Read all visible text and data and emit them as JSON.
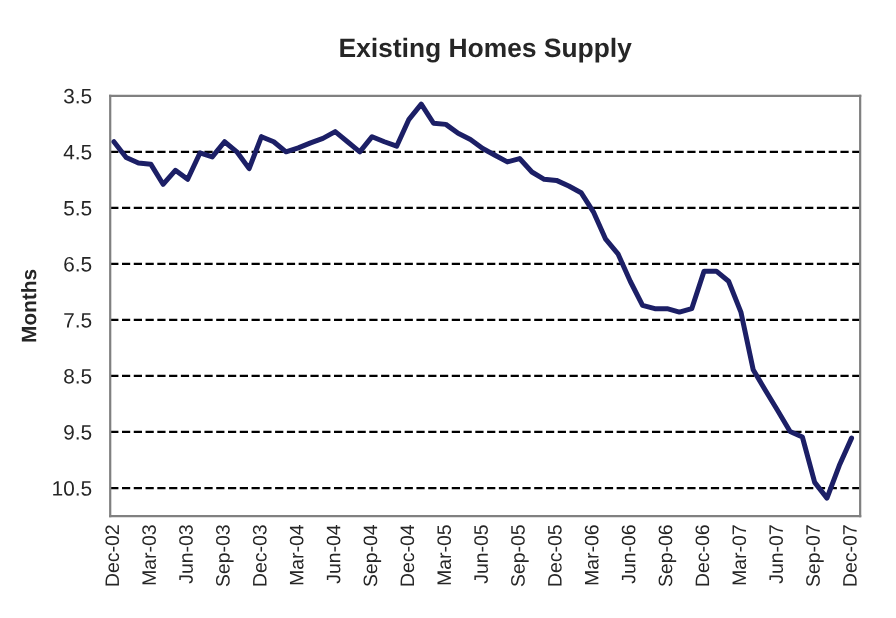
{
  "chart_data": {
    "type": "line",
    "title": "Existing Homes Supply",
    "ylabel": "Months",
    "categories": [
      "Dec-02",
      null,
      null,
      "Mar-03",
      null,
      null,
      "Jun-03",
      null,
      null,
      "Sep-03",
      null,
      null,
      "Dec-03",
      null,
      null,
      "Mar-04",
      null,
      null,
      "Jun-04",
      null,
      null,
      "Sep-04",
      null,
      null,
      "Dec-04",
      null,
      null,
      "Mar-05",
      null,
      null,
      "Jun-05",
      null,
      null,
      "Sep-05",
      null,
      null,
      "Dec-05",
      null,
      null,
      "Mar-06",
      null,
      null,
      "Jun-06",
      null,
      null,
      "Sep-06",
      null,
      null,
      "Dec-06",
      null,
      null,
      "Mar-07",
      null,
      null,
      "Jun-07",
      null,
      null,
      "Sep-07",
      null,
      null,
      "Dec-07"
    ],
    "series": [
      {
        "color": "#1c1f66",
        "values": [
          4.32,
          4.6,
          4.7,
          4.72,
          5.08,
          4.83,
          4.99,
          4.52,
          4.59,
          4.32,
          4.5,
          4.8,
          4.23,
          4.32,
          4.5,
          4.43,
          4.34,
          4.26,
          4.14,
          4.32,
          4.5,
          4.23,
          4.32,
          4.4,
          3.92,
          3.65,
          3.99,
          4.01,
          4.17,
          4.28,
          4.44,
          4.56,
          4.68,
          4.62,
          4.86,
          4.99,
          5.01,
          5.11,
          5.23,
          5.57,
          6.06,
          6.32,
          6.81,
          7.24,
          7.3,
          7.3,
          7.36,
          7.3,
          6.63,
          6.63,
          6.81,
          7.36,
          8.39,
          8.76,
          9.12,
          9.49,
          9.59,
          10.4,
          10.68,
          10.1,
          9.61
        ]
      }
    ],
    "ylim": [
      11,
      3.5
    ],
    "yticks": [
      3.5,
      4.5,
      5.5,
      6.5,
      7.5,
      8.5,
      9.5,
      10.5
    ],
    "grid": "y",
    "line_style": "solid",
    "marker": "none"
  }
}
